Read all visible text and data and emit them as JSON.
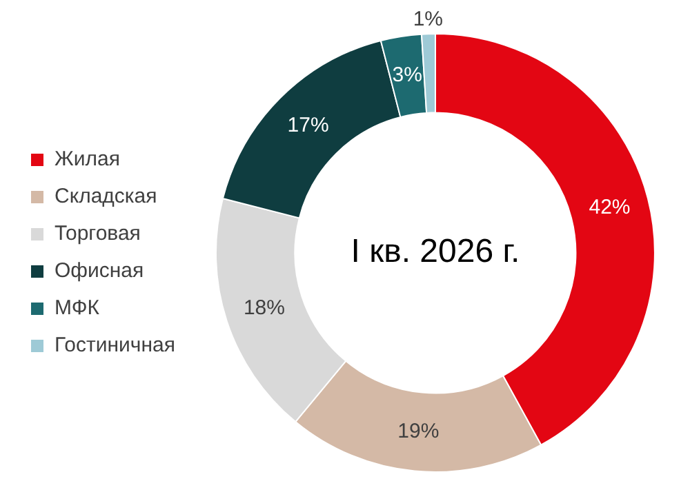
{
  "chart_data": {
    "type": "donut",
    "categories": [
      "Жилая",
      "Складская",
      "Торговая",
      "Офисная",
      "МФК",
      "Гостиничная"
    ],
    "values": [
      42,
      19,
      18,
      17,
      3,
      1
    ],
    "colors": [
      "#e30613",
      "#d4b9a6",
      "#d9d9d9",
      "#0f3d40",
      "#1d6a70",
      "#9ecad6"
    ],
    "value_labels": [
      "42%",
      "19%",
      "18%",
      "17%",
      "3%",
      "1%"
    ],
    "legend": "left",
    "annotations": [
      "I кв. 2026 г."
    ]
  }
}
